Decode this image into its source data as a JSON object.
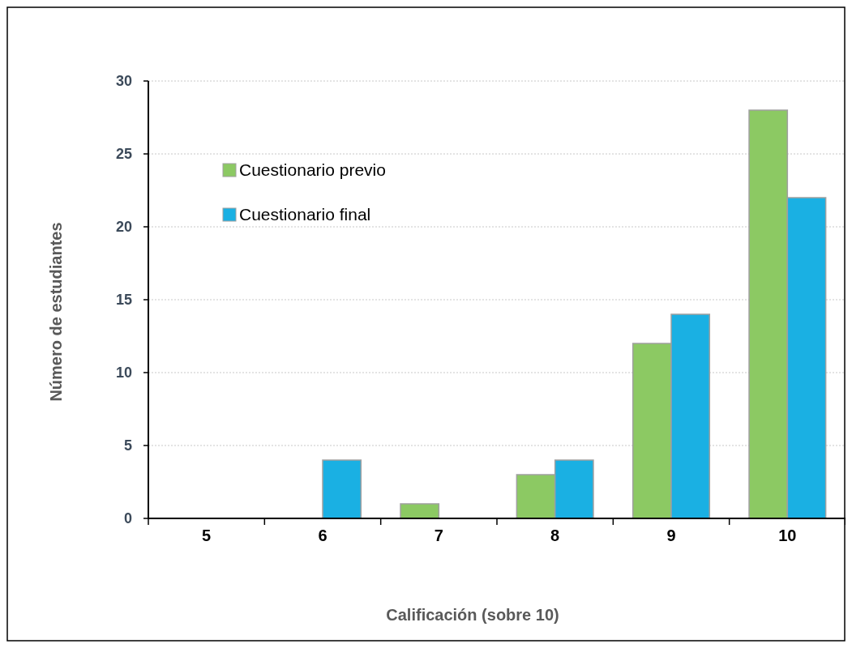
{
  "chart_data": {
    "type": "bar",
    "xlabel": "Calificación (sobre 10)",
    "ylabel": "Número de estudiantes",
    "categories": [
      "5",
      "6",
      "7",
      "8",
      "9",
      "10"
    ],
    "series": [
      {
        "name": "Cuestionario previo",
        "color": "#8cc963",
        "values": [
          0,
          0,
          1,
          3,
          12,
          28
        ]
      },
      {
        "name": "Cuestionario final",
        "color": "#1ab0e3",
        "values": [
          0,
          4,
          0,
          4,
          14,
          22
        ]
      }
    ],
    "ylim": [
      0,
      30
    ],
    "yticks": [
      0,
      5,
      10,
      15,
      20,
      25,
      30
    ],
    "grid": "y",
    "legend": "top left"
  }
}
